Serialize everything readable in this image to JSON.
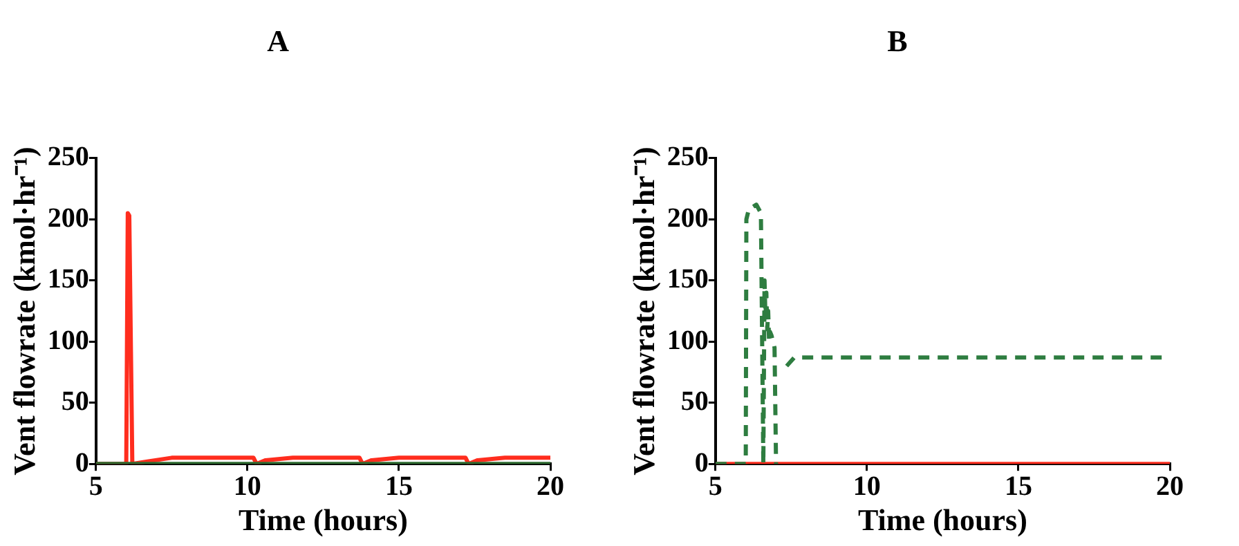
{
  "chart_data": [
    {
      "type": "line",
      "title": "A",
      "xlabel": "Time (hours)",
      "ylabel": "Vent flowrate (kmol·hr⁻¹)",
      "xlim": [
        5,
        20
      ],
      "xticks": [
        5,
        10,
        15,
        20
      ],
      "ylim": [
        0,
        250
      ],
      "yticks": [
        0,
        50,
        100,
        150,
        200,
        250
      ],
      "marker": "none",
      "legend": false,
      "series": [
        {
          "color": "#2e6b30",
          "line_style": "solid",
          "x": [
            5,
            20
          ],
          "values": [
            0,
            0
          ]
        },
        {
          "color": "#ff2d1e",
          "line_style": "solid",
          "x": [
            5,
            6.0,
            6.05,
            6.1,
            6.2,
            6.7,
            7.5,
            10.2,
            10.3,
            10.6,
            11.5,
            13.7,
            13.8,
            14.1,
            15,
            17.2,
            17.3,
            17.6,
            18.5,
            20
          ],
          "values": [
            0,
            0,
            205,
            203,
            0,
            2,
            5,
            5,
            0,
            3,
            5,
            5,
            0,
            3,
            5,
            5,
            0,
            3,
            5,
            5
          ]
        }
      ]
    },
    {
      "type": "line",
      "title": "B",
      "xlabel": "Time (hours)",
      "ylabel": "Vent flowrate (kmol·hr⁻¹)",
      "xlim": [
        5,
        20
      ],
      "xticks": [
        5,
        10,
        15,
        20
      ],
      "ylim": [
        0,
        250
      ],
      "yticks": [
        0,
        50,
        100,
        150,
        200,
        250
      ],
      "marker": "none",
      "legend": false,
      "series": [
        {
          "color": "#2e7d40",
          "line_style": "dashed",
          "x": [
            5,
            6.0,
            6.02,
            6.1,
            6.35,
            6.5,
            6.58,
            6.62,
            6.65,
            6.68,
            6.71,
            6.74,
            6.77,
            6.8,
            6.85,
            6.9,
            6.95,
            7.0,
            7.2,
            7.35,
            7.6,
            20
          ],
          "values": [
            0,
            0,
            200,
            208,
            212,
            205,
            0,
            150,
            120,
            140,
            110,
            125,
            100,
            108,
            105,
            100,
            95,
            0,
            null,
            80,
            87,
            87
          ]
        },
        {
          "color": "#ff2d1e",
          "line_style": "solid",
          "x": [
            5,
            20
          ],
          "values": [
            0,
            0
          ]
        }
      ]
    }
  ]
}
